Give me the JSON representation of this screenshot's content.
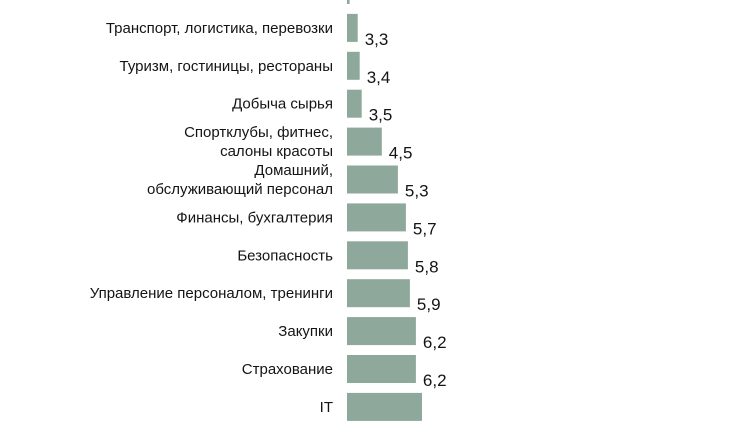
{
  "chart_data": {
    "type": "bar",
    "orientation": "horizontal",
    "categories": [
      "",
      "Транспорт, логистика, перевозки",
      "Туризм, гостиницы, рестораны",
      "Добыча сырья",
      "Спортклубы, фитнес,\nсалоны красоты",
      "Домашний,\nобслуживающий персонал",
      "Финансы, бухгалтерия",
      "Безопасность",
      "Управление персоналом, тренинги",
      "Закупки",
      "Страхование",
      "IT"
    ],
    "values": [
      2.9,
      3.3,
      3.4,
      3.5,
      4.5,
      5.3,
      5.7,
      5.8,
      5.9,
      6.2,
      6.2,
      6.5
    ],
    "value_labels": [
      "",
      "3,3",
      "3,4",
      "3,5",
      "4,5",
      "5,3",
      "5,7",
      "5,8",
      "5,9",
      "6,2",
      "6,2",
      ""
    ],
    "colors": {
      "bar": "#8ea89b",
      "text": "#141414"
    },
    "title": "",
    "xlabel": "",
    "ylabel": "",
    "grid": false,
    "legend": "none"
  }
}
